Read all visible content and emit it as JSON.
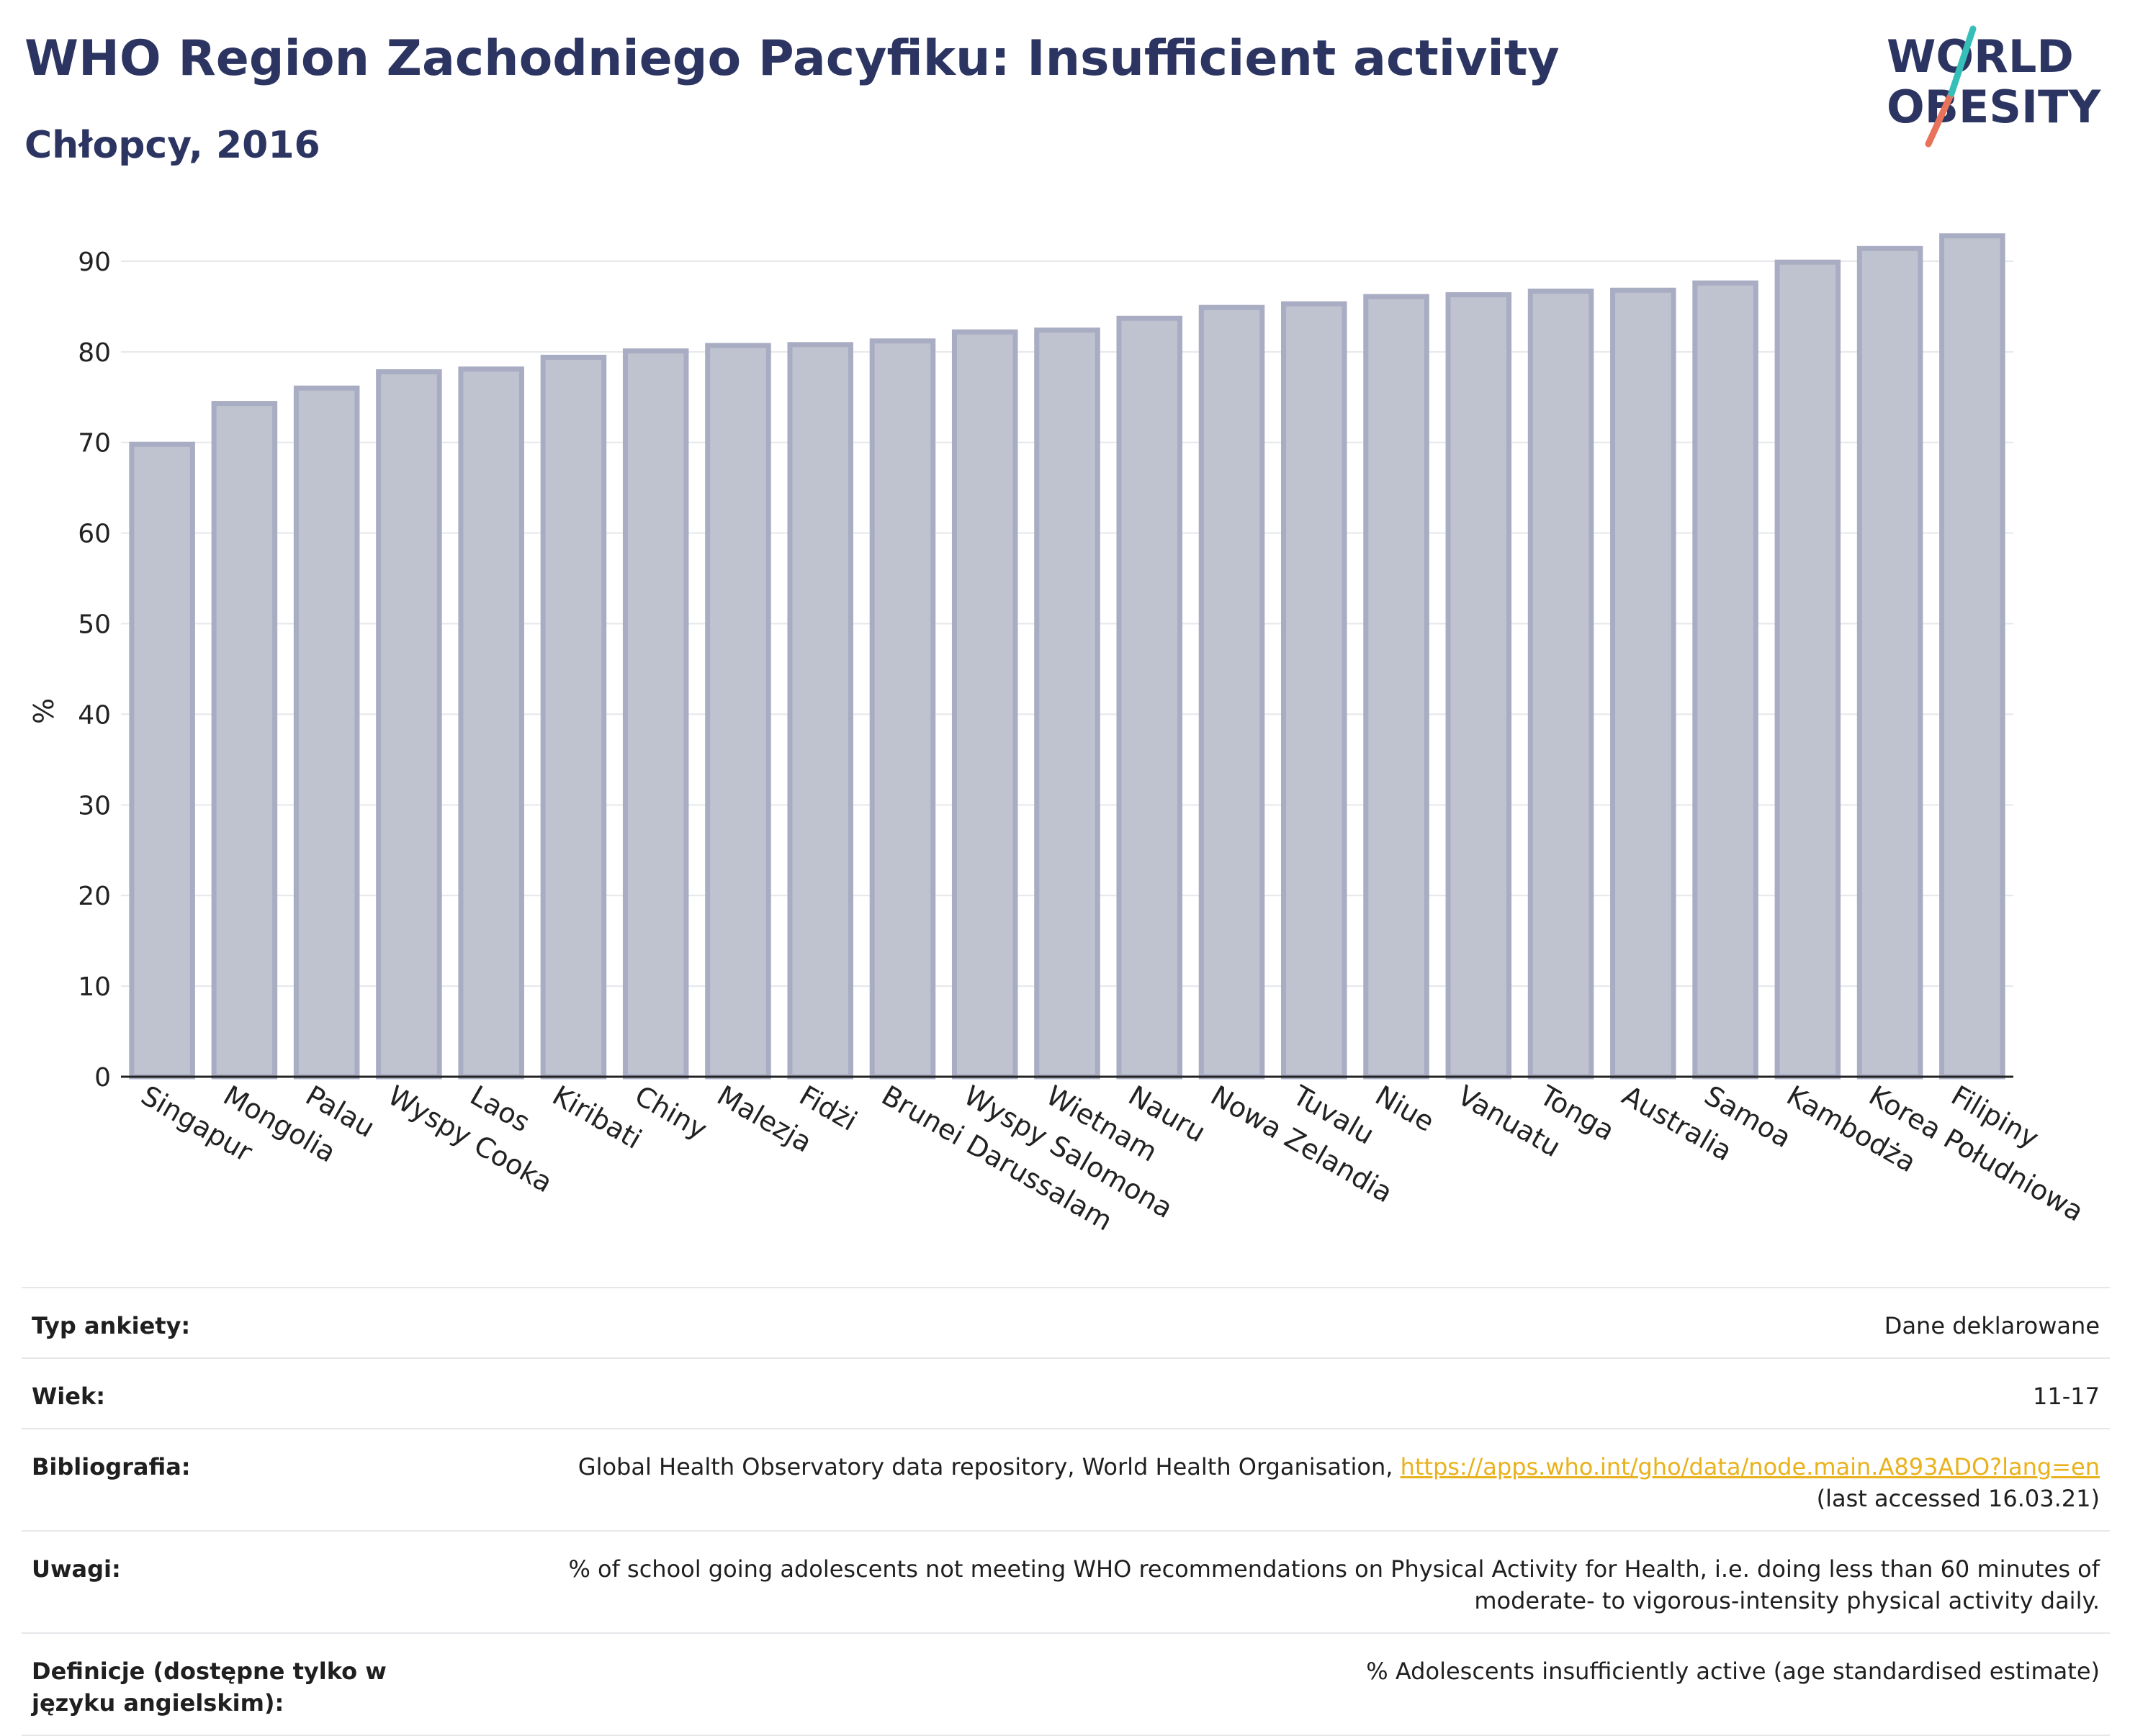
{
  "header": {
    "title": "WHO Region Zachodniego Pacyfiku: Insufficient activity",
    "subtitle": "Chłopcy, 2016"
  },
  "logo": {
    "line1": "WORLD",
    "line2": "OBESITY",
    "text_color": "#2c3561",
    "slash_colors": [
      "#e8735a",
      "#35bfb8"
    ]
  },
  "chart_data": {
    "type": "bar",
    "categories": [
      "Singapur",
      "Mongolia",
      "Palau",
      "Wyspy Cooka",
      "Laos",
      "Kiribati",
      "Chiny",
      "Malezja",
      "Fidżi",
      "Brunei Darussalam",
      "Wyspy Salomona",
      "Wietnam",
      "Nauru",
      "Nowa Zelandia",
      "Tuvalu",
      "Niue",
      "Vanuatu",
      "Tonga",
      "Australia",
      "Samoa",
      "Kambodża",
      "Korea Południowa",
      "Filipiny"
    ],
    "values": [
      69.8,
      74.3,
      76.0,
      77.8,
      78.1,
      79.4,
      80.1,
      80.7,
      80.8,
      81.2,
      82.2,
      82.4,
      83.7,
      84.9,
      85.3,
      86.1,
      86.3,
      86.7,
      86.8,
      87.6,
      89.9,
      91.4,
      92.8
    ],
    "title": "",
    "xlabel": "",
    "ylabel": "%",
    "ylim": [
      0,
      95
    ],
    "yticks": [
      0,
      10,
      20,
      30,
      40,
      50,
      60,
      70,
      80,
      90
    ],
    "grid": true,
    "legend": "none",
    "bar_fill": "#bfc2cf",
    "bar_stroke": "#a9adc3"
  },
  "details": [
    {
      "label": "Typ ankiety:",
      "value": "Dane deklarowane"
    },
    {
      "label": "Wiek:",
      "value": "11-17"
    },
    {
      "label": "Bibliografia:",
      "value_prefix": "Global Health Observatory data repository, World Health Organisation, ",
      "link": "https://apps.who.int/gho/data/node.main.A893ADO?lang=en",
      "value_suffix": "(last accessed 16.03.21)"
    },
    {
      "label": "Uwagi:",
      "value": "% of school going adolescents not meeting WHO recommendations on Physical Activity for Health, i.e. doing less than 60 minutes of moderate- to vigorous-intensity physical activity daily."
    },
    {
      "label": "Definicje (dostępne tylko w języku angielskim):",
      "value": "% Adolescents insufficiently active (age standardised estimate)"
    }
  ]
}
